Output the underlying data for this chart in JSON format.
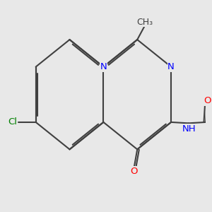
{
  "bg_color": "#e8e8e8",
  "bond_color": "#404040",
  "N_color": "#0000ff",
  "O_color": "#ff0000",
  "Cl_color": "#008000",
  "line_width": 1.5,
  "font_size": 9.5,
  "figsize": [
    3.0,
    3.0
  ],
  "dpi": 100,
  "xlim": [
    0,
    10
  ],
  "ylim": [
    0,
    10
  ]
}
